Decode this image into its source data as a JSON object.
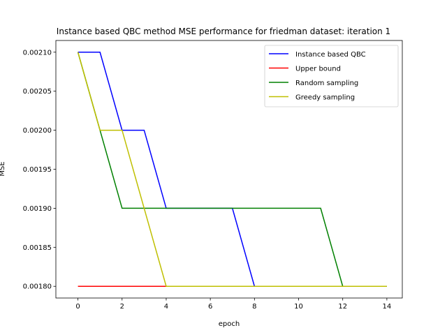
{
  "chart_data": {
    "type": "line",
    "title": "Instance based QBC method MSE performance for friedman dataset: iteration 1",
    "xlabel": "epoch",
    "ylabel": "MSE",
    "xlim": [
      -1.0,
      14.7
    ],
    "ylim": [
      0.001785,
      0.002115
    ],
    "xticks": [
      0,
      2,
      4,
      6,
      8,
      10,
      12,
      14
    ],
    "yticks": [
      0.0018,
      0.00185,
      0.0019,
      0.00195,
      0.002,
      0.00205,
      0.0021
    ],
    "ytick_labels": [
      "0.00180",
      "0.00185",
      "0.00190",
      "0.00195",
      "0.00200",
      "0.00205",
      "0.00210"
    ],
    "grid": false,
    "legend_position": "top-right",
    "x": [
      0,
      1,
      2,
      3,
      4,
      5,
      6,
      7,
      8,
      9,
      10,
      11,
      12,
      13,
      14
    ],
    "series": [
      {
        "name": "Instance based QBC",
        "color": "#0000ff",
        "values": [
          0.0021,
          0.0021,
          0.002,
          0.002,
          0.0019,
          0.0019,
          0.0019,
          0.0019,
          0.0018,
          0.0018,
          0.0018,
          0.0018,
          0.0018,
          0.0018,
          0.0018
        ]
      },
      {
        "name": "Upper bound",
        "color": "#ff0000",
        "values": [
          0.0018,
          0.0018,
          0.0018,
          0.0018,
          0.0018,
          0.0018,
          0.0018,
          0.0018,
          0.0018,
          0.0018,
          0.0018,
          0.0018,
          0.0018,
          0.0018,
          0.0018
        ]
      },
      {
        "name": "Random sampling",
        "color": "#008000",
        "values": [
          0.0021,
          0.002,
          0.0019,
          0.0019,
          0.0019,
          0.0019,
          0.0019,
          0.0019,
          0.0019,
          0.0019,
          0.0019,
          0.0019,
          0.0018,
          0.0018,
          0.0018
        ]
      },
      {
        "name": "Greedy sampling",
        "color": "#bfbf00",
        "values": [
          0.0021,
          0.002,
          0.002,
          0.0019,
          0.0018,
          0.0018,
          0.0018,
          0.0018,
          0.0018,
          0.0018,
          0.0018,
          0.0018,
          0.0018,
          0.0018,
          0.0018
        ]
      }
    ]
  }
}
